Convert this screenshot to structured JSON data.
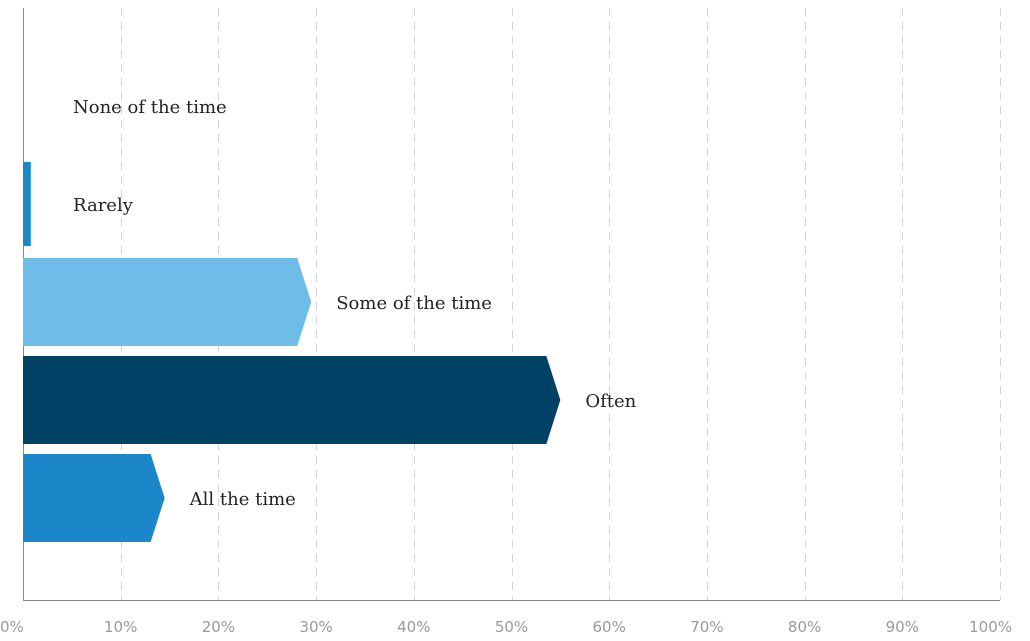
{
  "chart_data": {
    "type": "bar",
    "orientation": "horizontal",
    "categories": [
      "None of the time",
      "Rarely",
      "Some of the time",
      "Often",
      "All the time"
    ],
    "values": [
      0,
      0.8,
      29.5,
      55,
      14.5
    ],
    "colors": [
      "#1b87c8",
      "#1b87c8",
      "#6dbde8",
      "#004166",
      "#1b87c8"
    ],
    "xlim": [
      0,
      100
    ],
    "xticks": [
      0,
      10,
      20,
      30,
      40,
      50,
      60,
      70,
      80,
      90,
      100
    ],
    "tick_labels": [
      "0%",
      "10%",
      "20%",
      "30%",
      "40%",
      "50%",
      "60%",
      "70%",
      "80%",
      "90%",
      "100%"
    ],
    "grid": true,
    "title": "",
    "xlabel": "",
    "ylabel": ""
  }
}
